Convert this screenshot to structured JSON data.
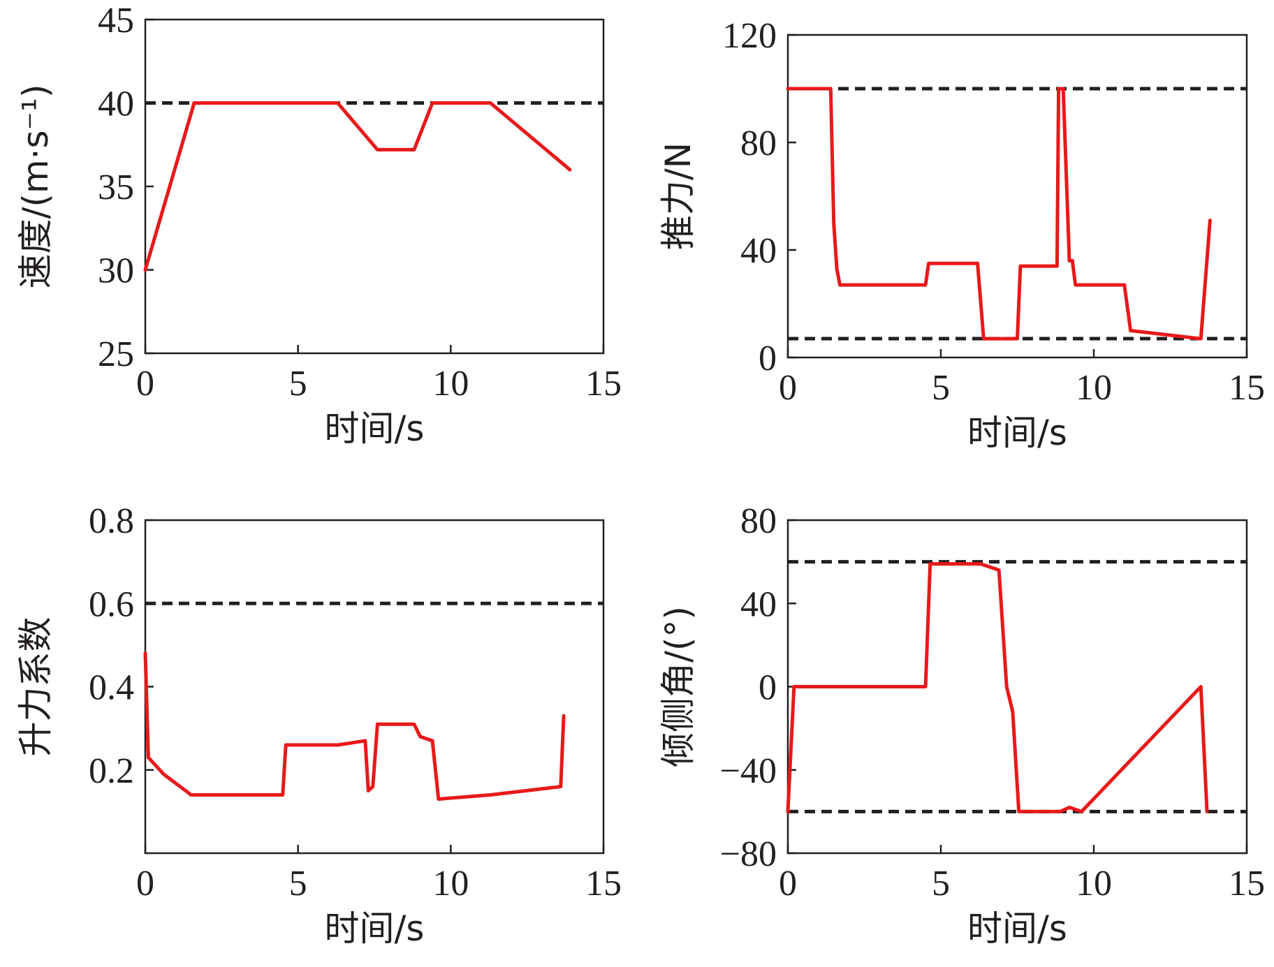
{
  "colors": {
    "series": "#e8191b",
    "limit": "#231f20",
    "axis": "#231f20"
  },
  "chart_data": [
    {
      "type": "line",
      "xlabel": "时间/s",
      "ylabel": "速度/(m·s⁻¹)",
      "xlim": [
        0,
        15
      ],
      "ylim": [
        25,
        45
      ],
      "xticks": [
        "0",
        "5",
        "10",
        "15"
      ],
      "yticks": [
        "25",
        "30",
        "35",
        "40",
        "45"
      ],
      "grid": false,
      "limits": [
        40
      ],
      "series": [
        {
          "x": [
            0,
            1.6,
            6.3,
            7.6,
            8.8,
            9.4,
            11.3,
            13.9
          ],
          "y": [
            30,
            40,
            40,
            37.2,
            37.2,
            40,
            40,
            36
          ]
        }
      ]
    },
    {
      "type": "line",
      "xlabel": "时间/s",
      "ylabel": "推力/N",
      "xlim": [
        0,
        15
      ],
      "ylim": [
        0,
        120
      ],
      "xticks": [
        "0",
        "5",
        "10",
        "15"
      ],
      "yticks": [
        "0",
        "40",
        "80",
        "120"
      ],
      "grid": false,
      "limits": [
        100,
        7
      ],
      "series": [
        {
          "x": [
            0,
            1.4,
            1.5,
            1.6,
            1.7,
            4.5,
            4.6,
            6.2,
            6.4,
            7.5,
            7.6,
            8.8,
            8.85,
            9.0,
            9.2,
            9.3,
            9.4,
            11.0,
            11.2,
            13.5,
            13.8
          ],
          "y": [
            100,
            100,
            50,
            33,
            27,
            27,
            35,
            35,
            7,
            7,
            34,
            34,
            100,
            100,
            36,
            36,
            27,
            27,
            10,
            7,
            51
          ]
        }
      ]
    },
    {
      "type": "line",
      "xlabel": "时间/s",
      "ylabel": "升力系数",
      "xlim": [
        0,
        15
      ],
      "ylim": [
        0,
        0.8
      ],
      "xticks": [
        "0",
        "5",
        "10",
        "15"
      ],
      "yticks": [
        "0.2",
        "0.4",
        "0.6",
        "0.8"
      ],
      "grid": false,
      "limits": [
        0.6
      ],
      "series": [
        {
          "x": [
            0,
            0.1,
            0.6,
            1.5,
            4.5,
            4.6,
            6.3,
            7.2,
            7.3,
            7.45,
            7.6,
            8.8,
            9.0,
            9.4,
            9.6,
            11.3,
            13.6,
            13.7
          ],
          "y": [
            0.48,
            0.23,
            0.19,
            0.14,
            0.14,
            0.26,
            0.26,
            0.27,
            0.15,
            0.16,
            0.31,
            0.31,
            0.28,
            0.27,
            0.13,
            0.14,
            0.16,
            0.33
          ]
        }
      ]
    },
    {
      "type": "line",
      "xlabel": "时间/s",
      "ylabel": "倾侧角/(°)",
      "xlim": [
        0,
        15
      ],
      "ylim": [
        -80,
        80
      ],
      "xticks": [
        "0",
        "5",
        "10",
        "15"
      ],
      "yticks": [
        "-80",
        "-40",
        "0",
        "40",
        "80"
      ],
      "grid": false,
      "limits": [
        60,
        -60
      ],
      "series": [
        {
          "x": [
            0,
            0.2,
            4.5,
            4.65,
            6.3,
            6.9,
            7.15,
            7.35,
            7.55,
            8.9,
            9.2,
            9.6,
            13.5,
            13.7
          ],
          "y": [
            -60,
            0,
            0,
            59,
            59,
            56,
            0,
            -12,
            -60,
            -60,
            -58,
            -60,
            0,
            -60
          ]
        }
      ]
    }
  ]
}
